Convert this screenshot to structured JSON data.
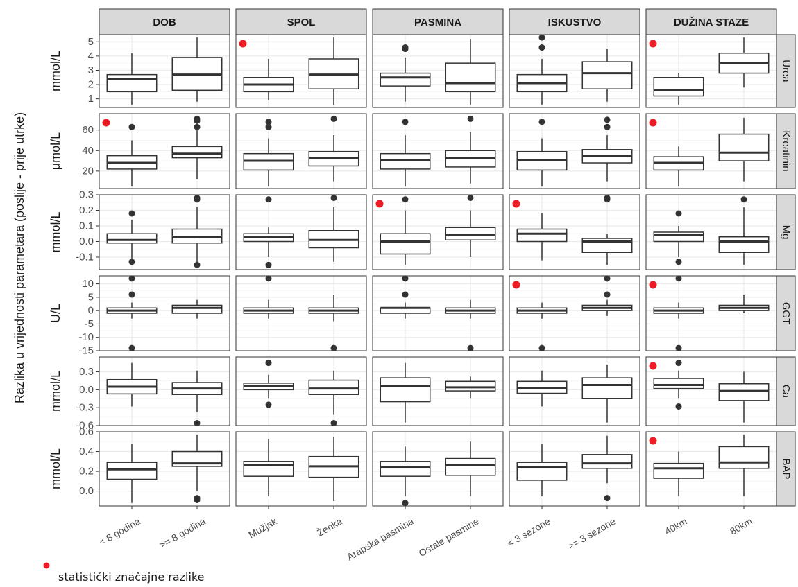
{
  "chart_data": {
    "type": "boxplot",
    "ylabel": "Razlika u vrijednosti parametara (poslije - prije utrke)",
    "legend": {
      "label": "statistički značajne razlike",
      "color": "#ee1c24",
      "placement": "bottom-left"
    },
    "colors": {
      "strip_bg": "#d9d9d9",
      "panel_border": "#333333",
      "grid_major": "#ebebeb",
      "grid_minor": "#f5f5f5",
      "box_fill": "#ffffff",
      "box_line": "#333333",
      "outlier": "#333333",
      "significance": "#ee1c24"
    },
    "grid": true,
    "facets": [
      {
        "key": "dob",
        "label": "DOB",
        "categories": [
          "< 8 godina",
          ">= 8 godina"
        ]
      },
      {
        "key": "spol",
        "label": "SPOL",
        "categories": [
          "Mužjak",
          "Ženka"
        ]
      },
      {
        "key": "pasmina",
        "label": "PASMINA",
        "categories": [
          "Arapska pasmina",
          "Ostale pasmine"
        ]
      },
      {
        "key": "iskustvo",
        "label": "ISKUSTVO",
        "categories": [
          "< 3 sezone",
          ">= 3 sezone"
        ]
      },
      {
        "key": "duzina",
        "label": "DUŽINA STAZE",
        "categories": [
          "40km",
          "80km"
        ]
      }
    ],
    "rows": [
      {
        "key": "urea",
        "label": "Urea",
        "unit": "mmol/L",
        "ylim": [
          0.4,
          5.5
        ],
        "ticks": [
          1,
          2,
          3,
          4,
          5
        ],
        "tick_labels": [
          "1",
          "2",
          "3",
          "4",
          "5"
        ],
        "significant": [
          "spol",
          "duzina"
        ],
        "boxes": [
          [
            {
              "wmin": 0.6,
              "q1": 1.5,
              "med": 2.4,
              "q3": 2.7,
              "wmax": 4.2,
              "outliers": []
            },
            {
              "wmin": 0.8,
              "q1": 1.6,
              "med": 2.7,
              "q3": 3.9,
              "wmax": 5.3,
              "outliers": []
            }
          ],
          [
            {
              "wmin": 0.9,
              "q1": 1.5,
              "med": 2.0,
              "q3": 2.5,
              "wmax": 3.8,
              "outliers": []
            },
            {
              "wmin": 0.6,
              "q1": 1.7,
              "med": 2.7,
              "q3": 3.8,
              "wmax": 5.3,
              "outliers": []
            }
          ],
          [
            {
              "wmin": 0.8,
              "q1": 1.9,
              "med": 2.5,
              "q3": 2.8,
              "wmax": 3.9,
              "outliers": [
                4.6,
                4.5
              ]
            },
            {
              "wmin": 0.6,
              "q1": 1.5,
              "med": 2.1,
              "q3": 3.5,
              "wmax": 5.2,
              "outliers": []
            }
          ],
          [
            {
              "wmin": 0.6,
              "q1": 1.5,
              "med": 2.1,
              "q3": 2.7,
              "wmax": 3.8,
              "outliers": [
                4.6,
                5.3
              ]
            },
            {
              "wmin": 0.8,
              "q1": 1.7,
              "med": 2.8,
              "q3": 3.6,
              "wmax": 4.5,
              "outliers": []
            }
          ],
          [
            {
              "wmin": 0.6,
              "q1": 1.2,
              "med": 1.6,
              "q3": 2.5,
              "wmax": 2.8,
              "outliers": []
            },
            {
              "wmin": 1.8,
              "q1": 2.8,
              "med": 3.5,
              "q3": 4.2,
              "wmax": 5.3,
              "outliers": []
            }
          ]
        ]
      },
      {
        "key": "kreatinin",
        "label": "Kreatinin",
        "unit": "μmol/L",
        "ylim": [
          3,
          76
        ],
        "ticks": [
          20,
          40,
          60
        ],
        "tick_labels": [
          "20",
          "40",
          "60"
        ],
        "significant": [
          "dob",
          "duzina"
        ],
        "boxes": [
          [
            {
              "wmin": 5,
              "q1": 22,
              "med": 28,
              "q3": 35,
              "wmax": 50,
              "outliers": [
                63
              ]
            },
            {
              "wmin": 12,
              "q1": 33,
              "med": 37,
              "q3": 44,
              "wmax": 60,
              "outliers": [
                63,
                69,
                71
              ]
            }
          ],
          [
            {
              "wmin": 5,
              "q1": 21,
              "med": 30,
              "q3": 37,
              "wmax": 52,
              "outliers": [
                63,
                68
              ]
            },
            {
              "wmin": 10,
              "q1": 25,
              "med": 33,
              "q3": 39,
              "wmax": 55,
              "outliers": [
                71
              ]
            }
          ],
          [
            {
              "wmin": 5,
              "q1": 22,
              "med": 31,
              "q3": 37,
              "wmax": 55,
              "outliers": [
                68
              ]
            },
            {
              "wmin": 8,
              "q1": 24,
              "med": 33,
              "q3": 40,
              "wmax": 58,
              "outliers": [
                71
              ]
            }
          ],
          [
            {
              "wmin": 5,
              "q1": 21,
              "med": 31,
              "q3": 39,
              "wmax": 52,
              "outliers": [
                68
              ]
            },
            {
              "wmin": 10,
              "q1": 28,
              "med": 35,
              "q3": 41,
              "wmax": 55,
              "outliers": [
                63,
                70
              ]
            }
          ],
          [
            {
              "wmin": 5,
              "q1": 21,
              "med": 28,
              "q3": 34,
              "wmax": 44,
              "outliers": []
            },
            {
              "wmin": 10,
              "q1": 30,
              "med": 38,
              "q3": 56,
              "wmax": 72,
              "outliers": []
            }
          ]
        ]
      },
      {
        "key": "mg",
        "label": "Mg",
        "unit": "mmol/L",
        "ylim": [
          -0.18,
          0.3
        ],
        "ticks": [
          -0.1,
          0.0,
          0.1,
          0.2,
          0.3
        ],
        "tick_labels": [
          "-0.1",
          "0.0",
          "0.1",
          "0.2",
          "0.3"
        ],
        "significant": [
          "pasmina",
          "iskustvo"
        ],
        "boxes": [
          [
            {
              "wmin": -0.12,
              "q1": -0.01,
              "med": 0.01,
              "q3": 0.05,
              "wmax": 0.14,
              "outliers": [
                0.18,
                -0.13
              ]
            },
            {
              "wmin": -0.14,
              "q1": -0.01,
              "med": 0.03,
              "q3": 0.08,
              "wmax": 0.22,
              "outliers": [
                0.27,
                0.28,
                -0.15
              ]
            }
          ],
          [
            {
              "wmin": -0.1,
              "q1": 0.0,
              "med": 0.03,
              "q3": 0.05,
              "wmax": 0.09,
              "outliers": [
                0.27,
                -0.15
              ]
            },
            {
              "wmin": -0.13,
              "q1": -0.04,
              "med": 0.01,
              "q3": 0.07,
              "wmax": 0.22,
              "outliers": [
                0.28
              ]
            }
          ],
          [
            {
              "wmin": -0.15,
              "q1": -0.08,
              "med": 0.0,
              "q3": 0.05,
              "wmax": 0.2,
              "outliers": [
                0.27
              ]
            },
            {
              "wmin": -0.1,
              "q1": 0.01,
              "med": 0.04,
              "q3": 0.09,
              "wmax": 0.2,
              "outliers": [
                0.28
              ]
            }
          ],
          [
            {
              "wmin": -0.12,
              "q1": 0.0,
              "med": 0.05,
              "q3": 0.08,
              "wmax": 0.18,
              "outliers": []
            },
            {
              "wmin": -0.15,
              "q1": -0.07,
              "med": 0.0,
              "q3": 0.02,
              "wmax": 0.05,
              "outliers": [
                0.27,
                0.28
              ]
            }
          ],
          [
            {
              "wmin": -0.1,
              "q1": 0.0,
              "med": 0.04,
              "q3": 0.06,
              "wmax": 0.1,
              "outliers": [
                0.18,
                -0.13
              ]
            },
            {
              "wmin": -0.15,
              "q1": -0.07,
              "med": 0.0,
              "q3": 0.03,
              "wmax": 0.22,
              "outliers": [
                0.27
              ]
            }
          ]
        ]
      },
      {
        "key": "ggt",
        "label": "GGT",
        "unit": "U/L",
        "ylim": [
          -15,
          13
        ],
        "ticks": [
          -15,
          -10,
          -5,
          0,
          5,
          10
        ],
        "tick_labels": [
          "-15",
          "-10",
          "-5",
          "0",
          "5",
          "10"
        ],
        "significant": [
          "iskustvo",
          "duzina"
        ],
        "boxes": [
          [
            {
              "wmin": -3,
              "q1": -1,
              "med": 0,
              "q3": 1,
              "wmax": 3,
              "outliers": [
                6,
                12,
                -14
              ]
            },
            {
              "wmin": -3,
              "q1": -1,
              "med": 1,
              "q3": 2,
              "wmax": 4,
              "outliers": []
            }
          ],
          [
            {
              "wmin": -3,
              "q1": -1,
              "med": 0,
              "q3": 1,
              "wmax": 4,
              "outliers": [
                12
              ]
            },
            {
              "wmin": -4,
              "q1": -1,
              "med": 0,
              "q3": 1,
              "wmax": 6,
              "outliers": [
                -14
              ]
            }
          ],
          [
            {
              "wmin": -3,
              "q1": -1,
              "med": 1,
              "q3": 1,
              "wmax": 3,
              "outliers": [
                6,
                12
              ]
            },
            {
              "wmin": -3,
              "q1": -1,
              "med": 0,
              "q3": 1,
              "wmax": 4,
              "outliers": [
                -14
              ]
            }
          ],
          [
            {
              "wmin": -3,
              "q1": -1,
              "med": 0,
              "q3": 1,
              "wmax": 3,
              "outliers": [
                -14
              ]
            },
            {
              "wmin": -2,
              "q1": 0,
              "med": 1,
              "q3": 2,
              "wmax": 4,
              "outliers": [
                6,
                12
              ]
            }
          ],
          [
            {
              "wmin": -3,
              "q1": -1,
              "med": 0,
              "q3": 1,
              "wmax": 3,
              "outliers": [
                12,
                -14
              ]
            },
            {
              "wmin": -1,
              "q1": 0,
              "med": 1,
              "q3": 2,
              "wmax": 6,
              "outliers": []
            }
          ]
        ]
      },
      {
        "key": "ca",
        "label": "Ca",
        "unit": "mmol/L",
        "ylim": [
          -0.6,
          0.55
        ],
        "ticks": [
          -0.6,
          -0.3,
          0.0,
          0.3
        ],
        "tick_labels": [
          "-0.6",
          "-0.3",
          "0.0",
          "0.3"
        ],
        "significant": [
          "duzina"
        ],
        "boxes": [
          [
            {
              "wmin": -0.28,
              "q1": -0.07,
              "med": 0.05,
              "q3": 0.17,
              "wmax": 0.45,
              "outliers": []
            },
            {
              "wmin": -0.38,
              "q1": -0.08,
              "med": 0.02,
              "q3": 0.12,
              "wmax": 0.32,
              "outliers": [
                -0.56
              ]
            }
          ],
          [
            {
              "wmin": -0.15,
              "q1": 0.0,
              "med": 0.06,
              "q3": 0.11,
              "wmax": 0.25,
              "outliers": [
                0.45,
                -0.25
              ]
            },
            {
              "wmin": -0.42,
              "q1": -0.08,
              "med": 0.02,
              "q3": 0.16,
              "wmax": 0.32,
              "outliers": [
                -0.56
              ]
            }
          ],
          [
            {
              "wmin": -0.55,
              "q1": -0.2,
              "med": 0.06,
              "q3": 0.2,
              "wmax": 0.45,
              "outliers": []
            },
            {
              "wmin": -0.15,
              "q1": -0.02,
              "med": 0.04,
              "q3": 0.14,
              "wmax": 0.22,
              "outliers": []
            }
          ],
          [
            {
              "wmin": -0.28,
              "q1": -0.06,
              "med": 0.03,
              "q3": 0.14,
              "wmax": 0.32,
              "outliers": []
            },
            {
              "wmin": -0.55,
              "q1": -0.15,
              "med": 0.08,
              "q3": 0.2,
              "wmax": 0.42,
              "outliers": []
            }
          ],
          [
            {
              "wmin": -0.15,
              "q1": 0.02,
              "med": 0.08,
              "q3": 0.19,
              "wmax": 0.32,
              "outliers": [
                0.45,
                -0.28
              ]
            },
            {
              "wmin": -0.55,
              "q1": -0.18,
              "med": -0.02,
              "q3": 0.1,
              "wmax": 0.3,
              "outliers": []
            }
          ]
        ]
      },
      {
        "key": "bap",
        "label": "BAP",
        "unit": "mmol/L",
        "ylim": [
          -0.15,
          0.6
        ],
        "ticks": [
          0.0,
          0.2,
          0.4,
          0.6
        ],
        "tick_labels": [
          "0.0",
          "0.2",
          "0.4",
          "0.6"
        ],
        "significant": [
          "duzina"
        ],
        "boxes": [
          [
            {
              "wmin": -0.12,
              "q1": 0.12,
              "med": 0.22,
              "q3": 0.29,
              "wmax": 0.48,
              "outliers": []
            },
            {
              "wmin": 0.0,
              "q1": 0.25,
              "med": 0.28,
              "q3": 0.4,
              "wmax": 0.57,
              "outliers": [
                -0.07,
                -0.09
              ]
            }
          ],
          [
            {
              "wmin": -0.05,
              "q1": 0.15,
              "med": 0.26,
              "q3": 0.3,
              "wmax": 0.53,
              "outliers": []
            },
            {
              "wmin": -0.1,
              "q1": 0.14,
              "med": 0.25,
              "q3": 0.35,
              "wmax": 0.55,
              "outliers": []
            }
          ],
          [
            {
              "wmin": -0.05,
              "q1": 0.15,
              "med": 0.24,
              "q3": 0.3,
              "wmax": 0.45,
              "outliers": [
                -0.12
              ]
            },
            {
              "wmin": -0.05,
              "q1": 0.16,
              "med": 0.26,
              "q3": 0.33,
              "wmax": 0.5,
              "outliers": []
            }
          ],
          [
            {
              "wmin": -0.05,
              "q1": 0.11,
              "med": 0.24,
              "q3": 0.29,
              "wmax": 0.48,
              "outliers": []
            },
            {
              "wmin": 0.08,
              "q1": 0.23,
              "med": 0.28,
              "q3": 0.37,
              "wmax": 0.56,
              "outliers": [
                -0.07
              ]
            }
          ],
          [
            {
              "wmin": -0.05,
              "q1": 0.13,
              "med": 0.23,
              "q3": 0.28,
              "wmax": 0.4,
              "outliers": []
            },
            {
              "wmin": -0.05,
              "q1": 0.23,
              "med": 0.29,
              "q3": 0.45,
              "wmax": 0.57,
              "outliers": []
            }
          ]
        ]
      }
    ]
  }
}
